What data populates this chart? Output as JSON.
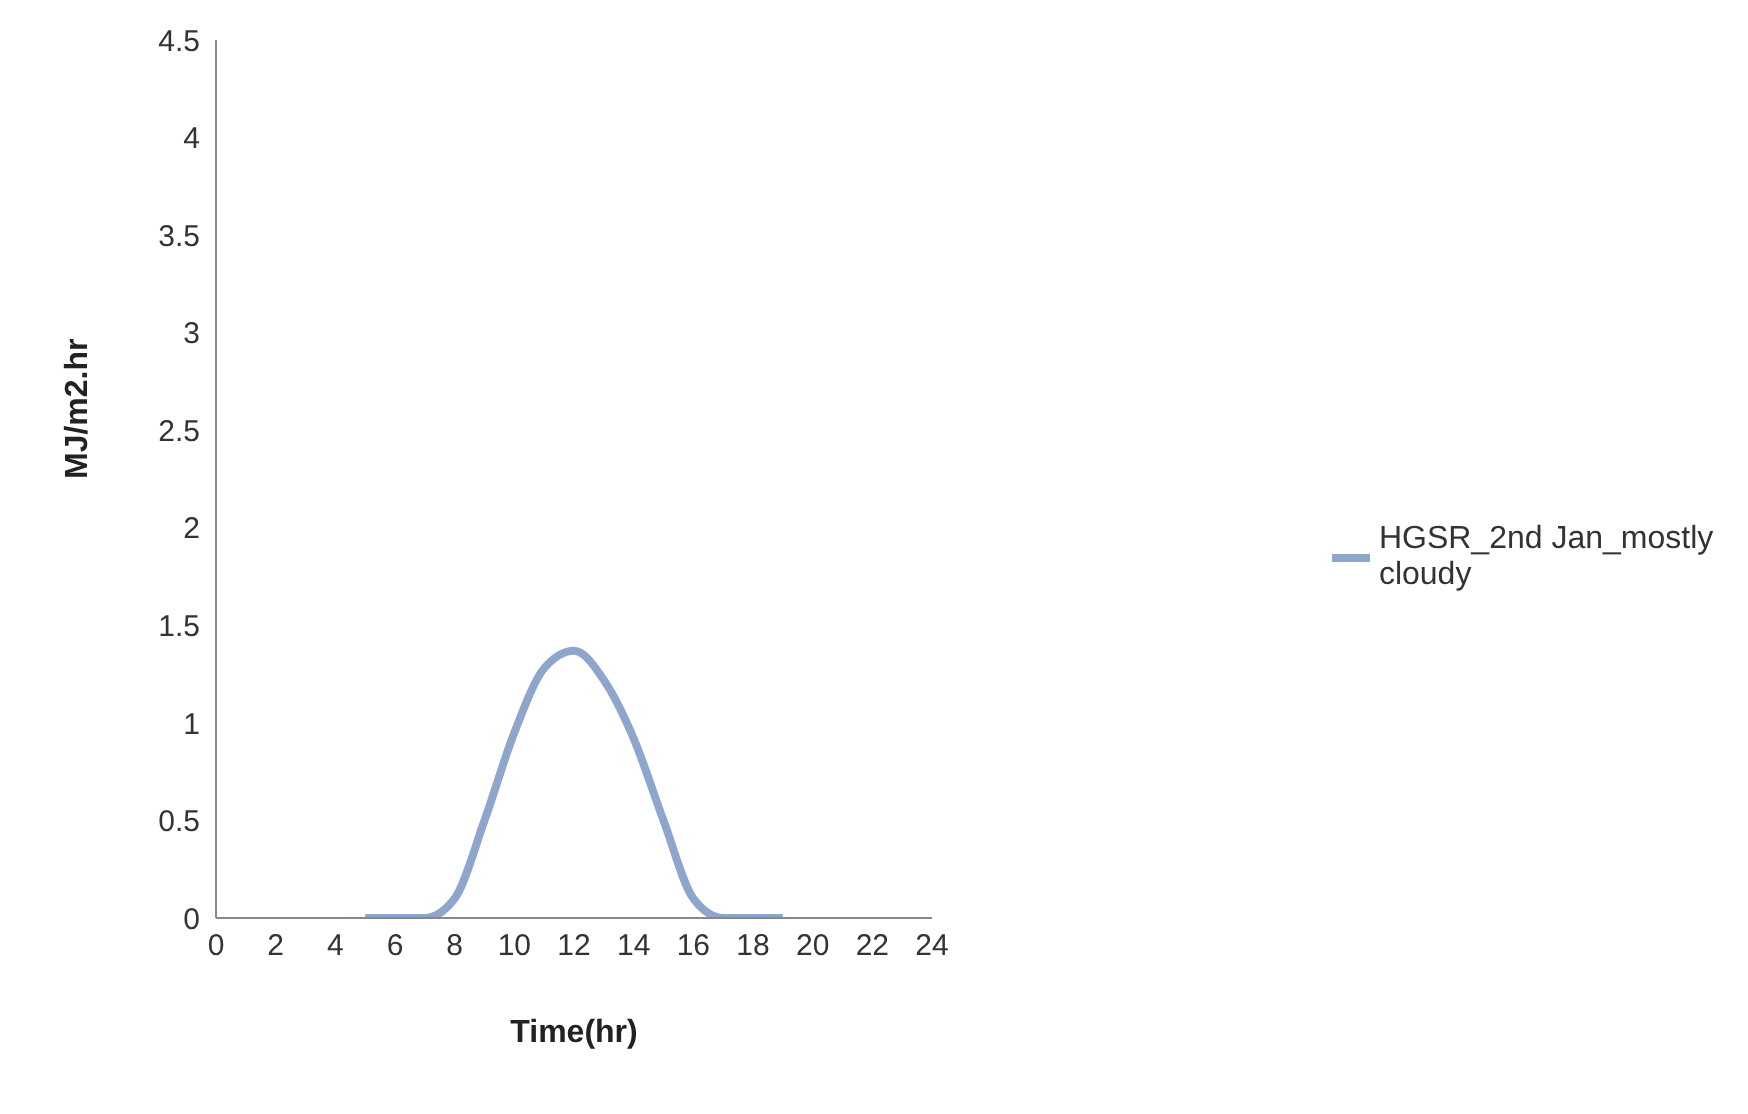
{
  "chart_data": {
    "type": "line",
    "xlabel": "Time(hr)",
    "ylabel": "MJ/m2.hr",
    "x": [
      5,
      6,
      7,
      8,
      9,
      10,
      11,
      12,
      13,
      14,
      15,
      16,
      17,
      18,
      19
    ],
    "series": [
      {
        "name": "HGSR_2nd Jan_mostly cloudy",
        "color": "#8ea5cc",
        "values": [
          0,
          0,
          0,
          0.1,
          0.5,
          0.95,
          1.28,
          1.37,
          1.22,
          0.92,
          0.5,
          0.1,
          0,
          0,
          0
        ]
      }
    ],
    "xlim": [
      0,
      24
    ],
    "xticks": [
      0,
      2,
      4,
      6,
      8,
      10,
      12,
      14,
      16,
      18,
      20,
      22,
      24
    ],
    "ylim": [
      0,
      4.5
    ],
    "yticks": [
      0,
      0.5,
      1,
      1.5,
      2,
      2.5,
      3,
      3.5,
      4,
      4.5
    ],
    "grid": false,
    "legend": "right",
    "marker": "none",
    "line_style": "solid"
  }
}
